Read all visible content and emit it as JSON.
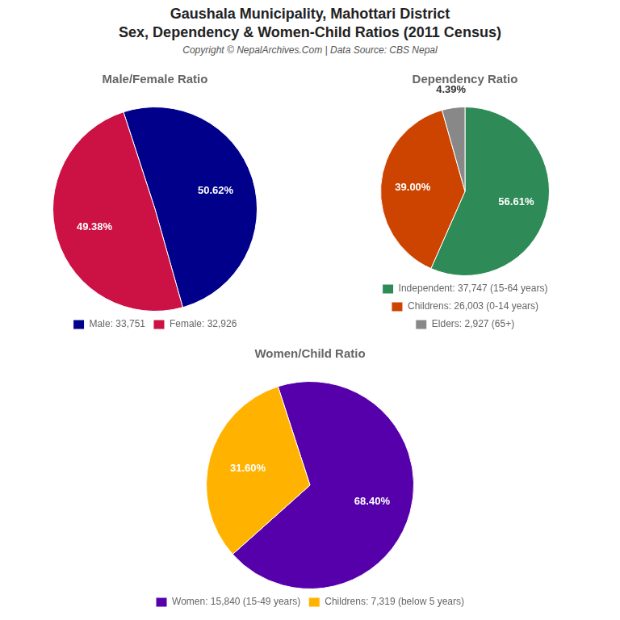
{
  "title": [
    "Gaushala Municipality, Mahottari District",
    "Sex, Dependency & Women-Child Ratios (2011 Census)"
  ],
  "subtitle": "Copyright © NepalArchives.Com | Data Source: CBS Nepal",
  "chart_data": [
    {
      "type": "pie",
      "title": "Male/Female Ratio",
      "categories": [
        "Male: 33,751",
        "Female: 32,926"
      ],
      "values": [
        50.62,
        49.38
      ],
      "value_labels": [
        "50.62%",
        "49.38%"
      ],
      "colors": [
        "#00008B",
        "#CC1144"
      ],
      "data_labels": true,
      "legend": "bottom"
    },
    {
      "type": "pie",
      "title": "Dependency Ratio",
      "categories": [
        "Independent: 37,747 (15-64 years)",
        "Childrens: 26,003 (0-14 years)",
        "Elders: 2,927 (65+)"
      ],
      "values": [
        56.61,
        39.0,
        4.39
      ],
      "value_labels": [
        "56.61%",
        "39.00%",
        "4.39%"
      ],
      "colors": [
        "#2E8B57",
        "#CC4400",
        "#888888"
      ],
      "data_labels": true,
      "legend": "bottom"
    },
    {
      "type": "pie",
      "title": "Women/Child Ratio",
      "categories": [
        "Women: 15,840 (15-49 years)",
        "Childrens: 7,319 (below 5 years)"
      ],
      "values": [
        68.4,
        31.6
      ],
      "value_labels": [
        "68.40%",
        "31.60%"
      ],
      "colors": [
        "#5500AA",
        "#FFB300"
      ],
      "data_labels": true,
      "legend": "bottom"
    }
  ]
}
